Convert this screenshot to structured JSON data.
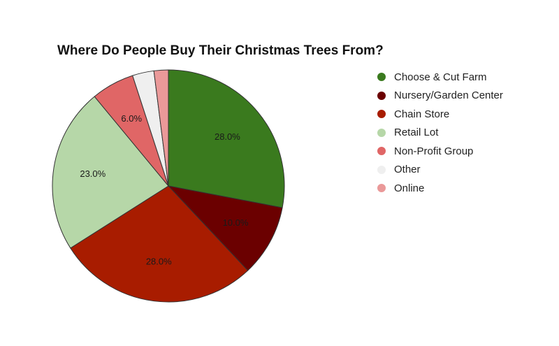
{
  "chart_data": {
    "type": "pie",
    "title": "Where Do People Buy Their Christmas Trees From?",
    "legend_position": "right",
    "slices": [
      {
        "name": "Choose & Cut Farm",
        "value": 28.0,
        "label": "28.0%",
        "color": "#3a7a1e"
      },
      {
        "name": "Nursery/Garden Center",
        "value": 10.0,
        "label": "10.0%",
        "color": "#6b0000"
      },
      {
        "name": "Chain Store",
        "value": 28.0,
        "label": "28.0%",
        "color": "#a81c00"
      },
      {
        "name": "Retail Lot",
        "value": 23.0,
        "label": "23.0%",
        "color": "#b6d7a8"
      },
      {
        "name": "Non-Profit Group",
        "value": 6.0,
        "label": "6.0%",
        "color": "#e06666"
      },
      {
        "name": "Other",
        "value": 3.0,
        "label": "",
        "color": "#efefef"
      },
      {
        "name": "Online",
        "value": 2.0,
        "label": "",
        "color": "#ea9999"
      }
    ]
  }
}
